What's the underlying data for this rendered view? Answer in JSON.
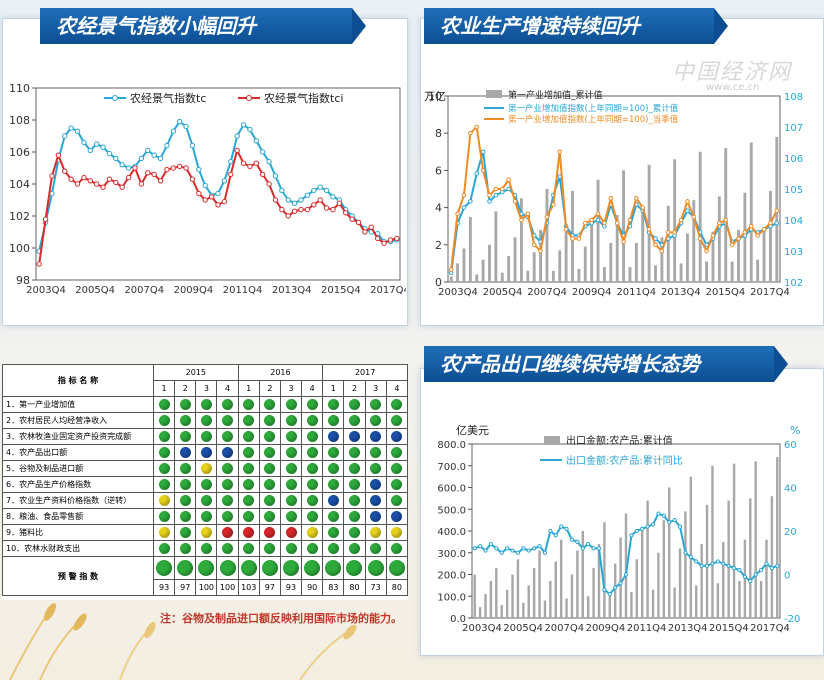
{
  "titles": {
    "t1": "农经景气指数小幅回升",
    "t2": "农业生产增速持续回升",
    "t3": "农产品出口继续保持增长态势"
  },
  "watermark": {
    "name": "中国经济网",
    "url": "www.ce.cn"
  },
  "note": "注：谷物及制品进口额反映利用国际市场的能力。",
  "colors": {
    "blue": "#2aa6d6",
    "red": "#d92b2b",
    "orange": "#f08a24",
    "gray": "#a8a8a8",
    "ribbon": "#0d4e93"
  },
  "chart_data": [
    {
      "type": "line",
      "xticks": [
        "2003Q4",
        "2005Q4",
        "2007Q4",
        "2009Q4",
        "2011Q4",
        "2013Q4",
        "2015Q4",
        "2017Q4"
      ],
      "ylim": [
        98,
        110
      ],
      "yticks": [
        98,
        100,
        102,
        104,
        106,
        108,
        110
      ],
      "series": [
        {
          "name": "农经景气指数tc",
          "color": "#2aa6d6",
          "values": [
            99.8,
            101.6,
            103.4,
            105.5,
            107.0,
            107.5,
            107.3,
            106.6,
            106.1,
            106.5,
            106.3,
            105.9,
            105.6,
            105.2,
            105.0,
            105.1,
            105.6,
            106.1,
            105.8,
            105.6,
            106.4,
            107.3,
            107.9,
            107.6,
            106.4,
            104.9,
            103.9,
            103.3,
            103.4,
            104.2,
            105.4,
            107.0,
            107.7,
            107.4,
            106.7,
            106.0,
            105.4,
            104.5,
            103.6,
            103.0,
            102.8,
            103.0,
            103.3,
            103.6,
            103.8,
            103.6,
            103.2,
            103.0,
            102.4,
            102.0,
            101.6,
            101.2,
            101.0,
            100.9,
            100.4,
            100.4,
            100.5
          ]
        },
        {
          "name": "农经景气指数tci",
          "color": "#d92b2b",
          "values": [
            99.0,
            101.8,
            104.5,
            105.8,
            104.8,
            104.3,
            104.0,
            104.4,
            104.2,
            104.0,
            103.8,
            104.3,
            104.1,
            103.8,
            104.4,
            105.0,
            104.0,
            104.7,
            104.6,
            104.2,
            104.9,
            105.0,
            105.1,
            105.0,
            104.3,
            103.4,
            103.0,
            103.2,
            102.7,
            102.9,
            104.6,
            106.1,
            105.3,
            105.1,
            105.3,
            104.6,
            104.0,
            103.0,
            102.4,
            102.0,
            102.3,
            102.4,
            102.4,
            102.7,
            103.0,
            102.5,
            102.4,
            102.8,
            102.2,
            101.8,
            101.6,
            101.0,
            101.3,
            100.6,
            100.3,
            100.5,
            100.6
          ]
        }
      ]
    },
    {
      "type": "bar+line",
      "ylabel": "万亿",
      "xticks": [
        "2003Q4",
        "2005Q4",
        "2007Q4",
        "2009Q4",
        "2011Q4",
        "2013Q4",
        "2015Q4",
        "2017Q4"
      ],
      "ylim": [
        0,
        10
      ],
      "yticks": [
        0,
        2,
        4,
        6,
        8,
        10
      ],
      "y2lim": [
        102,
        108
      ],
      "y2ticks": [
        102,
        103,
        104,
        105,
        106,
        107,
        108
      ],
      "bars": {
        "name": "第一产业增加值_累计值",
        "color": "#a8a8a8",
        "values": [
          0.3,
          1.0,
          1.8,
          3.5,
          0.4,
          1.2,
          2.0,
          3.8,
          0.5,
          1.4,
          2.4,
          4.5,
          0.6,
          1.6,
          2.8,
          5.0,
          0.6,
          1.7,
          2.9,
          4.9,
          0.7,
          1.9,
          3.2,
          5.5,
          0.8,
          2.1,
          3.6,
          6.0,
          0.8,
          2.1,
          3.8,
          6.3,
          0.9,
          2.4,
          4.1,
          6.6,
          1.0,
          2.6,
          4.4,
          7.0,
          1.1,
          2.7,
          4.6,
          7.2,
          1.1,
          2.8,
          4.8,
          7.5,
          1.2,
          2.9,
          4.9,
          7.8
        ]
      },
      "series": [
        {
          "name": "第一产业增加值指数(上年同期=100)_累计值",
          "axis": "right",
          "color": "#2aa6d6",
          "values": [
            102.3,
            103.9,
            104.4,
            104.6,
            105.5,
            106.2,
            104.6,
            104.8,
            104.9,
            105.0,
            104.8,
            104.2,
            104.1,
            103.5,
            103.3,
            103.9,
            104.8,
            105.4,
            103.8,
            103.5,
            103.5,
            103.8,
            103.9,
            104.0,
            103.8,
            104.5,
            103.9,
            103.5,
            103.8,
            104.5,
            104.3,
            103.6,
            103.4,
            103.2,
            103.4,
            103.5,
            103.9,
            104.3,
            104.1,
            103.6,
            103.2,
            103.4,
            103.8,
            103.9,
            103.3,
            103.4,
            103.5,
            103.7,
            103.6,
            103.7,
            103.8,
            103.9
          ]
        },
        {
          "name": "第一产业增加值指数(上年同期=100)_当季值",
          "axis": "right",
          "color": "#f08a24",
          "values": [
            102.4,
            104.2,
            104.8,
            106.8,
            107.0,
            105.6,
            104.8,
            105.0,
            105.0,
            105.3,
            104.6,
            104.0,
            104.2,
            103.2,
            103.0,
            104.1,
            104.5,
            106.2,
            103.7,
            103.4,
            103.4,
            103.9,
            104.0,
            104.2,
            103.9,
            104.7,
            103.9,
            103.3,
            104.0,
            104.7,
            104.4,
            103.7,
            103.2,
            103.0,
            103.6,
            103.6,
            104.0,
            104.6,
            104.1,
            103.4,
            103.0,
            103.5,
            103.9,
            104.0,
            103.2,
            103.4,
            103.6,
            103.8,
            103.5,
            103.7,
            103.9,
            104.3
          ]
        }
      ]
    },
    {
      "type": "bar+line",
      "ylabel": "亿美元",
      "y2label": "%",
      "xticks": [
        "2003Q4",
        "2005Q4",
        "2007Q4",
        "2009Q4",
        "2011Q4",
        "2013Q4",
        "2015Q4",
        "2017Q4"
      ],
      "ylim": [
        0,
        800
      ],
      "yticks": [
        "0.0",
        "100.0",
        "200.0",
        "300.0",
        "400.0",
        "500.0",
        "600.0",
        "700.0",
        "800.0"
      ],
      "y2lim": [
        -20,
        60
      ],
      "y2ticks": [
        -20,
        0,
        20,
        40,
        60
      ],
      "bars": {
        "name": "出口金额:农产品:累计值",
        "color": "#a8a8a8",
        "values": [
          200,
          50,
          110,
          170,
          230,
          60,
          130,
          200,
          270,
          70,
          150,
          230,
          310,
          80,
          170,
          260,
          360,
          90,
          200,
          310,
          400,
          100,
          230,
          340,
          440,
          110,
          250,
          370,
          480,
          120,
          270,
          410,
          540,
          130,
          300,
          450,
          600,
          140,
          320,
          490,
          650,
          150,
          340,
          520,
          700,
          160,
          350,
          540,
          710,
          170,
          360,
          550,
          720,
          170,
          360,
          560,
          740
        ]
      },
      "series": [
        {
          "name": "出口金额:农产品:累计同比",
          "axis": "right",
          "color": "#2aa6d6",
          "values": [
            12,
            13,
            11,
            14,
            12,
            10,
            12,
            11,
            10,
            12,
            11,
            12,
            13,
            10,
            20,
            18,
            22,
            21,
            16,
            15,
            12,
            14,
            12,
            12,
            -7,
            -9,
            -6,
            -4,
            0,
            18,
            20,
            21,
            22,
            23,
            28,
            27,
            24,
            25,
            22,
            10,
            8,
            6,
            4,
            4,
            5,
            6,
            5,
            4,
            3,
            2,
            -1,
            -3,
            0,
            2,
            5,
            3,
            4
          ]
        }
      ]
    }
  ],
  "table": {
    "header_name": "指 标 名 称",
    "years": [
      "2015",
      "2016",
      "2017"
    ],
    "quarters": [
      "1",
      "2",
      "3",
      "4",
      "1",
      "2",
      "3",
      "4",
      "1",
      "2",
      "3",
      "4"
    ],
    "rows": [
      {
        "label": "1．第一产业增加值",
        "dots": [
          "g",
          "g",
          "g",
          "g",
          "g",
          "g",
          "g",
          "g",
          "g",
          "g",
          "g",
          "g"
        ]
      },
      {
        "label": "2．农村居民人均经营净收入",
        "dots": [
          "g",
          "g",
          "g",
          "g",
          "g",
          "g",
          "g",
          "g",
          "g",
          "g",
          "g",
          "g"
        ]
      },
      {
        "label": "3．农林牧渔业固定资产投资完成额",
        "dots": [
          "g",
          "g",
          "g",
          "g",
          "g",
          "g",
          "g",
          "g",
          "b",
          "b",
          "b",
          "b"
        ]
      },
      {
        "label": "4．农产品出口额",
        "dots": [
          "g",
          "b",
          "b",
          "b",
          "g",
          "g",
          "g",
          "g",
          "g",
          "g",
          "g",
          "g"
        ]
      },
      {
        "label": "5．谷物及制品进口额",
        "dots": [
          "g",
          "g",
          "y",
          "g",
          "g",
          "g",
          "g",
          "g",
          "g",
          "g",
          "g",
          "g"
        ]
      },
      {
        "label": "6．农产品生产价格指数",
        "dots": [
          "g",
          "g",
          "g",
          "g",
          "g",
          "g",
          "g",
          "g",
          "g",
          "g",
          "b",
          "g"
        ]
      },
      {
        "label": "7．农业生产资料价格指数（逆转）",
        "dots": [
          "y",
          "g",
          "g",
          "g",
          "g",
          "g",
          "g",
          "g",
          "b",
          "g",
          "b",
          "g"
        ]
      },
      {
        "label": "8．粮油、食品零售额",
        "dots": [
          "g",
          "g",
          "g",
          "g",
          "g",
          "g",
          "g",
          "g",
          "g",
          "g",
          "b",
          "b"
        ]
      },
      {
        "label": "9．猪料比",
        "dots": [
          "y",
          "g",
          "y",
          "r",
          "r",
          "r",
          "r",
          "y",
          "g",
          "g",
          "y",
          "y"
        ]
      },
      {
        "label": "10．农林水财政支出",
        "dots": [
          "g",
          "g",
          "g",
          "g",
          "g",
          "g",
          "g",
          "g",
          "g",
          "g",
          "g",
          "g"
        ]
      }
    ],
    "summary_dots": [
      "g",
      "g",
      "g",
      "g",
      "g",
      "g",
      "g",
      "g",
      "g",
      "g",
      "g",
      "g"
    ],
    "footer_label": "预 警 指 数",
    "footer_values": [
      "93",
      "97",
      "100",
      "100",
      "103",
      "97",
      "93",
      "90",
      "83",
      "80",
      "73",
      "80"
    ],
    "dot_colors": {
      "g": "#2eaa3c",
      "b": "#1c4fa8",
      "y": "#e6d21c",
      "r": "#d8262a"
    }
  }
}
